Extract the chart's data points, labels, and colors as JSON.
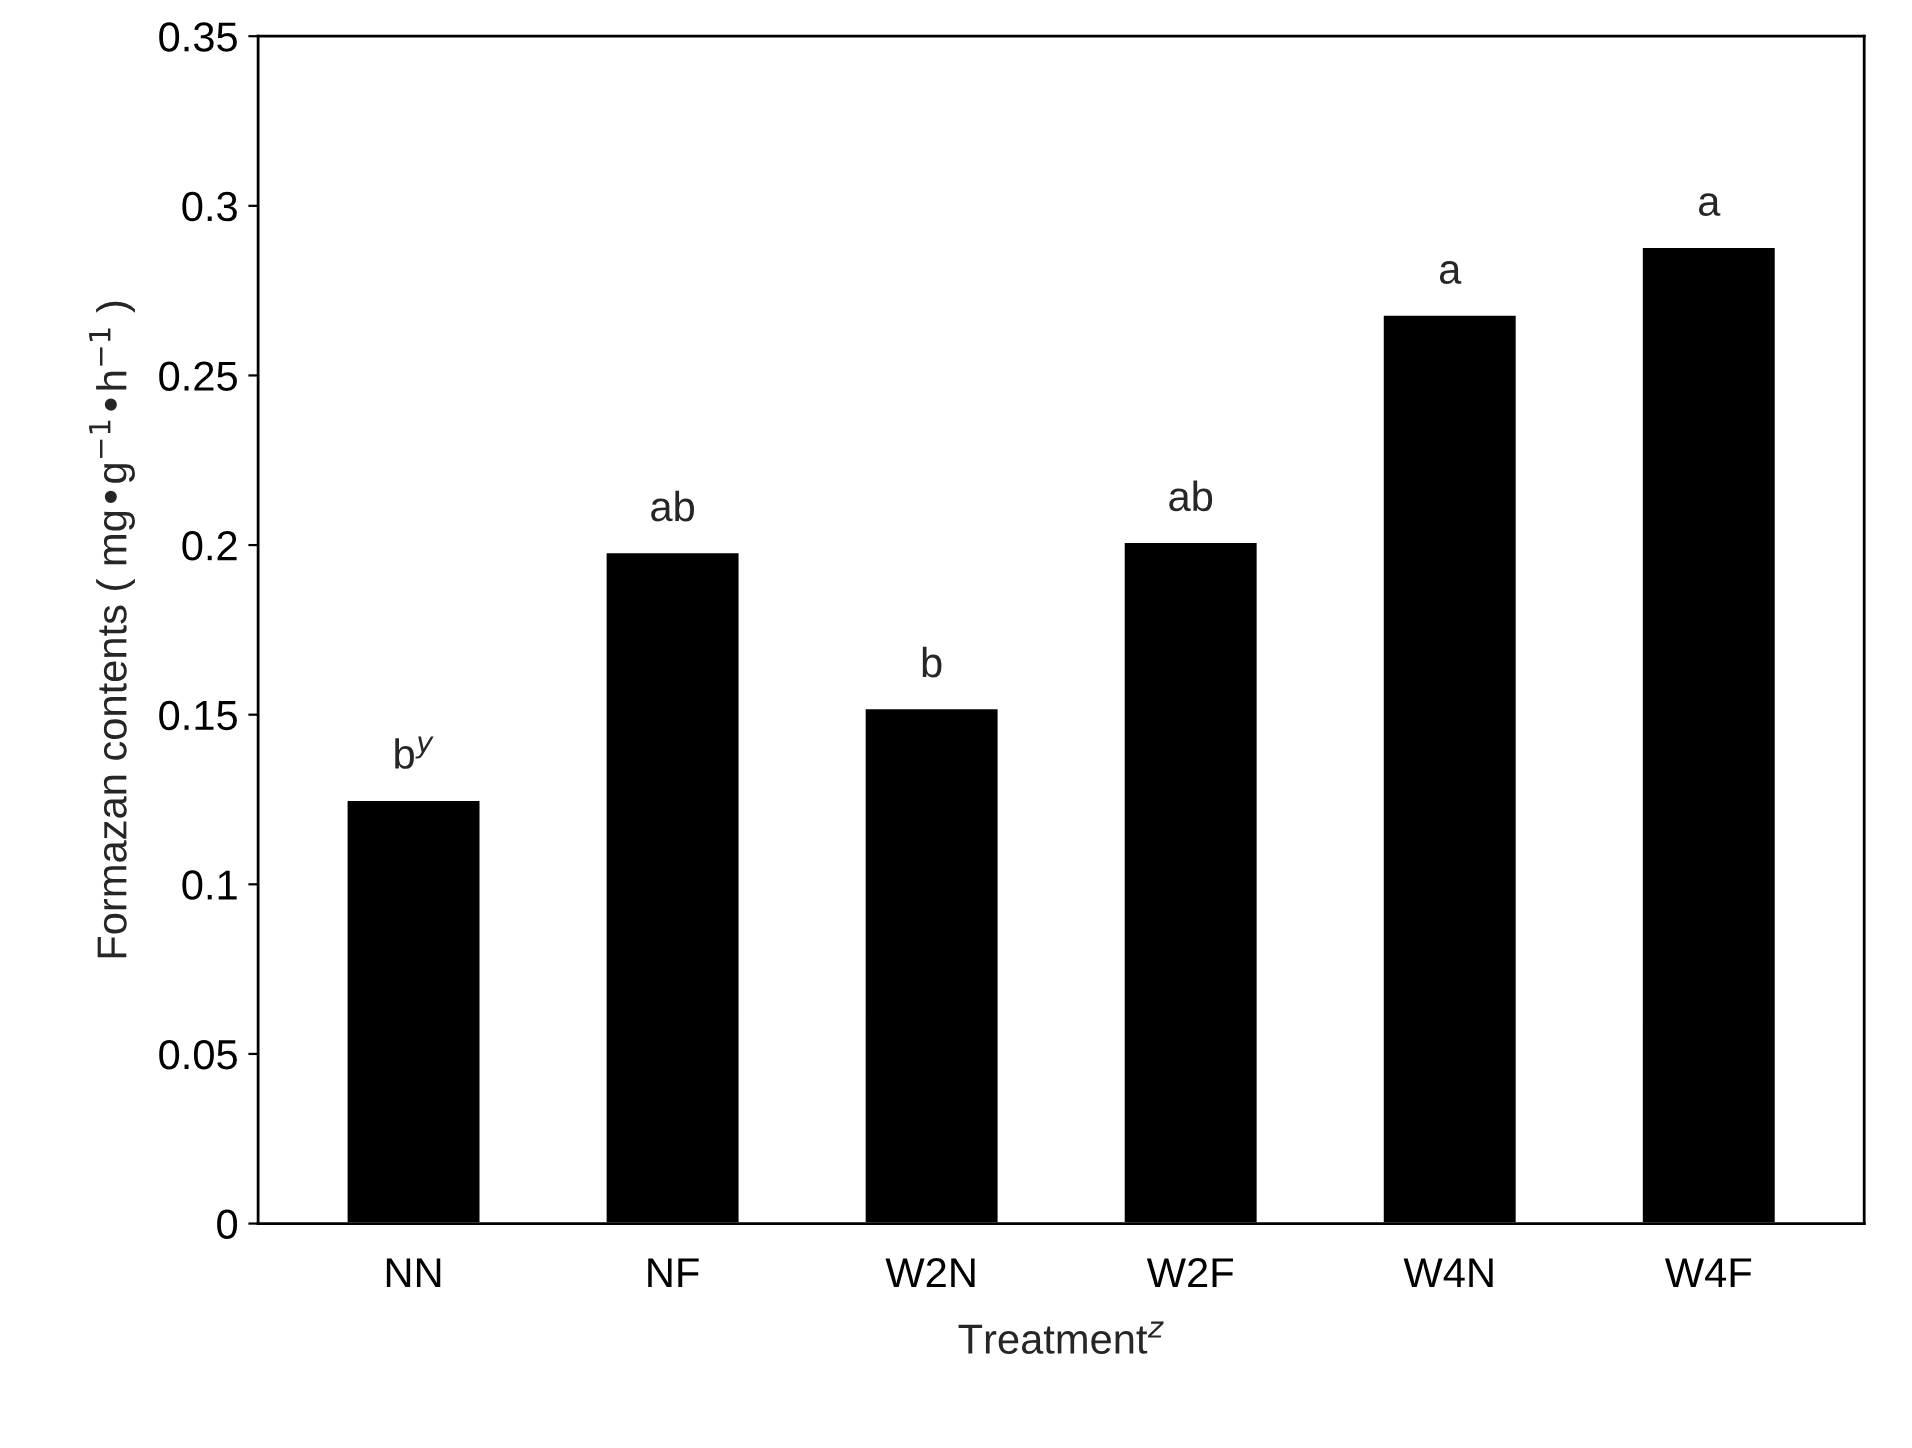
{
  "chart_data": {
    "type": "bar",
    "categories": [
      "NN",
      "NF",
      "W2N",
      "W2F",
      "W4N",
      "W4F"
    ],
    "values": [
      0.125,
      0.198,
      0.152,
      0.201,
      0.268,
      0.288
    ],
    "color": "#000000",
    "xlabel": "Treatment$^{z}$",
    "ylabel": "Formazan contents ( mg•g$^{−1}$•h$^{−1}$ )",
    "ylim": [
      0,
      0.35
    ],
    "yticks": [
      0,
      0.05,
      0.1,
      0.15,
      0.2,
      0.25,
      0.3,
      0.35
    ],
    "annotations": [
      {
        "text": "b$^{y}$",
        "x": "NN",
        "y": 0.125
      },
      {
        "text": "ab",
        "x": "NF",
        "y": 0.198
      },
      {
        "text": "b",
        "x": "W2N",
        "y": 0.152
      },
      {
        "text": "ab",
        "x": "W2F",
        "y": 0.201
      },
      {
        "text": "a",
        "x": "W4N",
        "y": 0.268
      },
      {
        "text": "a",
        "x": "W4F",
        "y": 0.288
      }
    ],
    "grid": false
  }
}
